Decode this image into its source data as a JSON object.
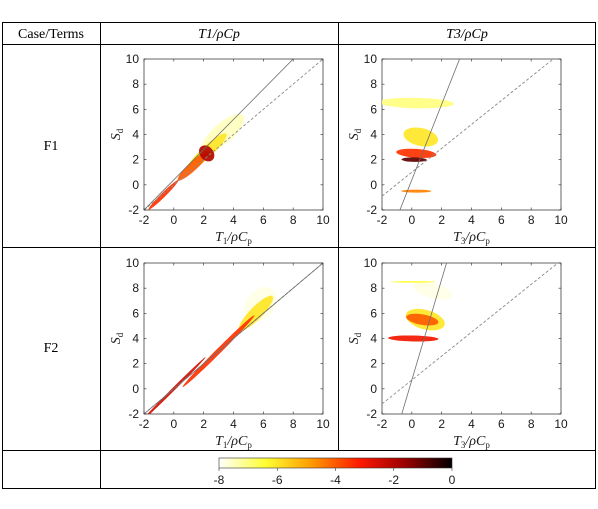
{
  "table": {
    "header_case": "Case/Terms",
    "header_col1": "T1/ρCp",
    "header_col2": "T3/ρCp",
    "rows": [
      "F1",
      "F2"
    ]
  },
  "colorbar": {
    "ticks": [
      "-8",
      "-6",
      "-4",
      "-2",
      "0"
    ],
    "range": [
      -8,
      0
    ],
    "colors": [
      "#ffffff",
      "#ffff33",
      "#ff9900",
      "#ff1a00",
      "#990000",
      "#000000"
    ]
  },
  "chart_data": [
    {
      "type": "heatmap",
      "case": "F1",
      "xlabel": "T_1/ρC_p",
      "ylabel": "S_d",
      "xlim": [
        -2,
        10
      ],
      "ylim": [
        -2,
        10
      ],
      "xticks": [
        -2,
        0,
        2,
        4,
        6,
        8,
        10
      ],
      "yticks": [
        -2,
        0,
        2,
        4,
        6,
        8,
        10
      ],
      "reference_lines": [
        {
          "style": "dashed",
          "slope": 1,
          "intercept": 0
        },
        {
          "style": "solid",
          "slope": 1.2,
          "intercept": 0.4
        }
      ],
      "blobs": [
        {
          "x": 3.3,
          "y": 4.1,
          "sx": 1.8,
          "sy": 0.8,
          "rot": 0.72,
          "level": -7.5
        },
        {
          "x": 2.2,
          "y": 2.6,
          "sx": 1.8,
          "sy": 0.45,
          "rot": 0.75,
          "level": -6.0
        },
        {
          "x": 1.3,
          "y": 1.5,
          "sx": 1.4,
          "sy": 0.35,
          "rot": 0.75,
          "level": -4.0
        },
        {
          "x": 2.2,
          "y": 2.5,
          "sx": 0.45,
          "sy": 0.7,
          "rot": 0.7,
          "level": -2.0
        },
        {
          "x": -0.7,
          "y": -0.8,
          "sx": 1.4,
          "sy": 0.18,
          "rot": 0.78,
          "level": -3.5
        }
      ]
    },
    {
      "type": "heatmap",
      "case": "F1",
      "xlabel": "T_3/ρC_p",
      "ylabel": "S_d",
      "xlim": [
        -2,
        10
      ],
      "ylim": [
        -2,
        10
      ],
      "xticks": [
        -2,
        0,
        2,
        4,
        6,
        8,
        10
      ],
      "yticks": [
        -2,
        0,
        2,
        4,
        6,
        8,
        10
      ],
      "reference_lines": [
        {
          "style": "dashed",
          "slope": 0.95,
          "intercept": 1.0
        },
        {
          "style": "solid",
          "slope": 3.0,
          "intercept": 0.4
        }
      ],
      "blobs": [
        {
          "x": 0.3,
          "y": 6.5,
          "sx": 0.35,
          "sy": 3.0,
          "rot": 1.55,
          "level": -7.0
        },
        {
          "x": 0.6,
          "y": 3.8,
          "sx": 0.6,
          "sy": 1.4,
          "rot": 1.35,
          "level": -6.0
        },
        {
          "x": 0.3,
          "y": 2.5,
          "sx": 0.3,
          "sy": 1.6,
          "rot": 1.5,
          "level": -3.5
        },
        {
          "x": 0.15,
          "y": 2.0,
          "sx": 0.15,
          "sy": 1.0,
          "rot": 1.55,
          "level": -1.0
        },
        {
          "x": 0.3,
          "y": -0.5,
          "sx": 0.1,
          "sy": 1.2,
          "rot": 1.57,
          "level": -4.5
        }
      ]
    },
    {
      "type": "heatmap",
      "case": "F2",
      "xlabel": "T_1/ρC_p",
      "ylabel": "S_d",
      "xlim": [
        -2,
        10
      ],
      "ylim": [
        -2,
        10
      ],
      "xticks": [
        -2,
        0,
        2,
        4,
        6,
        8,
        10
      ],
      "yticks": [
        -2,
        0,
        2,
        4,
        6,
        8,
        10
      ],
      "reference_lines": [
        {
          "style": "dashed",
          "slope": 1,
          "intercept": 0
        },
        {
          "style": "solid",
          "slope": 1,
          "intercept": 0
        }
      ],
      "blobs": [
        {
          "x": 5.8,
          "y": 6.7,
          "sx": 1.3,
          "sy": 1.1,
          "rot": 0.9,
          "level": -7.8
        },
        {
          "x": 5.5,
          "y": 6.0,
          "sx": 1.6,
          "sy": 0.5,
          "rot": 0.8,
          "level": -6.0
        },
        {
          "x": 3.0,
          "y": 3.0,
          "sx": 3.4,
          "sy": 0.2,
          "rot": 0.785,
          "level": -3.5
        },
        {
          "x": 0.0,
          "y": 0.0,
          "sx": 3.0,
          "sy": 0.12,
          "rot": 0.785,
          "level": -2.5
        }
      ]
    },
    {
      "type": "heatmap",
      "case": "F2",
      "xlabel": "T_3/ρC_p",
      "ylabel": "S_d",
      "xlim": [
        -2,
        10
      ],
      "ylim": [
        -2,
        10
      ],
      "xticks": [
        -2,
        0,
        2,
        4,
        6,
        8,
        10
      ],
      "yticks": [
        -2,
        0,
        2,
        4,
        6,
        8,
        10
      ],
      "reference_lines": [
        {
          "style": "dashed",
          "slope": 0.95,
          "intercept": 0.7
        },
        {
          "style": "solid",
          "slope": 4.0,
          "intercept": 0.7
        }
      ],
      "blobs": [
        {
          "x": 1.4,
          "y": 7.8,
          "sx": 0.5,
          "sy": 1.6,
          "rot": 1.3,
          "level": -7.8
        },
        {
          "x": 0.9,
          "y": 5.5,
          "sx": 0.65,
          "sy": 1.6,
          "rot": 1.3,
          "level": -6.0
        },
        {
          "x": 0.7,
          "y": 5.5,
          "sx": 0.35,
          "sy": 1.3,
          "rot": 1.4,
          "level": -4.0
        },
        {
          "x": 0.1,
          "y": 4.0,
          "sx": 0.2,
          "sy": 2.0,
          "rot": 1.55,
          "level": -3.0
        },
        {
          "x": 0.1,
          "y": 8.5,
          "sx": 0.06,
          "sy": 1.8,
          "rot": 1.57,
          "level": -6.5
        }
      ]
    }
  ]
}
